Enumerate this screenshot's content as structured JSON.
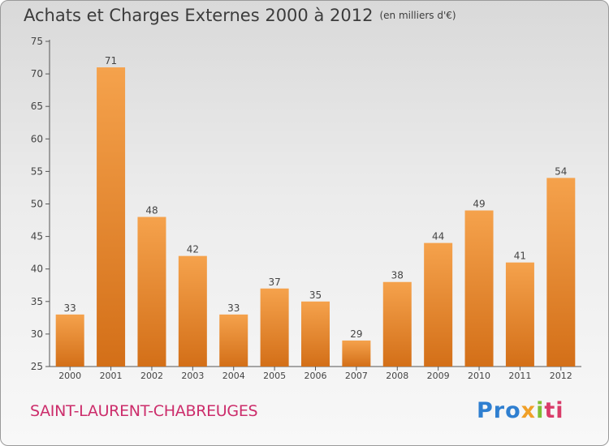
{
  "title": "Achats et Charges Externes 2000 à 2012",
  "unit_note": "(en milliers d'€)",
  "commune": "SAINT-LAURENT-CHABREUGES",
  "logo": {
    "part1": "Pro",
    "part2": "x",
    "part3": "i",
    "part4": "ti"
  },
  "colors": {
    "bar_top": "#f5a24c",
    "bar_bottom": "#d36f18",
    "title": "#3c3c3c",
    "commune": "#cc2d6b",
    "axis": "#555555"
  },
  "chart_data": {
    "type": "bar",
    "title": "Achats et Charges Externes 2000 à 2012",
    "subtitle": "(en milliers d'€)",
    "categories": [
      "2000",
      "2001",
      "2002",
      "2003",
      "2004",
      "2005",
      "2006",
      "2007",
      "2008",
      "2009",
      "2010",
      "2011",
      "2012"
    ],
    "values": [
      33,
      71,
      48,
      42,
      33,
      37,
      35,
      29,
      38,
      44,
      49,
      41,
      54
    ],
    "ylim": [
      25,
      75
    ],
    "yticks": [
      25,
      30,
      35,
      40,
      45,
      50,
      55,
      60,
      65,
      70,
      75
    ],
    "xlabel": "",
    "ylabel": "",
    "grid": false,
    "data_labels": true
  }
}
